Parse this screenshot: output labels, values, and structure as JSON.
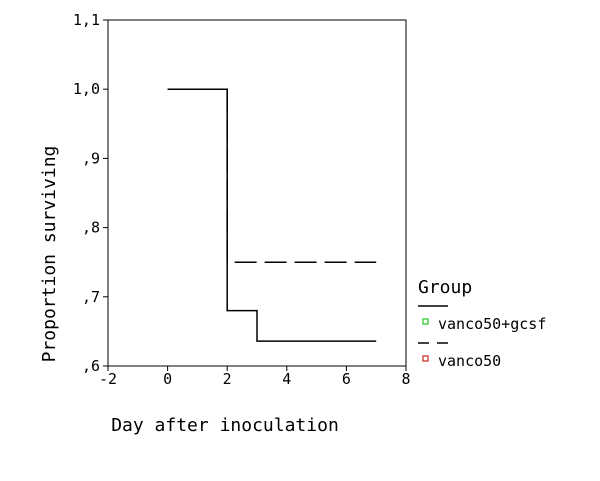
{
  "chart_data": {
    "type": "line",
    "title": "",
    "xlabel": "Day after inoculation",
    "ylabel": "Proportion surviving",
    "xlim": [
      -2,
      8
    ],
    "ylim": [
      0.6,
      1.1
    ],
    "x_ticks": [
      -2,
      0,
      2,
      4,
      6,
      8
    ],
    "x_tick_labels": [
      "-2",
      "0",
      "2",
      "4",
      "6",
      "8"
    ],
    "y_ticks": [
      0.6,
      0.7,
      0.8,
      0.9,
      1.0,
      1.1
    ],
    "y_tick_labels": [
      ",6",
      ",7",
      ",8",
      ",9",
      "1,0",
      "1,1"
    ],
    "grid": false,
    "legend": {
      "title": "Group",
      "position": "right"
    },
    "series": [
      {
        "name": "vanco50+gcsf",
        "line_style": "solid",
        "marker_color": "#33cc33",
        "step": true,
        "x": [
          0,
          2,
          2,
          3,
          3,
          7
        ],
        "y": [
          1.0,
          1.0,
          0.68,
          0.68,
          0.636,
          0.636
        ]
      },
      {
        "name": "vanco50",
        "line_style": "dashed",
        "marker_color": "#cc3333",
        "step": true,
        "x": [
          0,
          2,
          2,
          7
        ],
        "y": [
          1.0,
          1.0,
          0.75,
          0.75
        ]
      }
    ]
  }
}
